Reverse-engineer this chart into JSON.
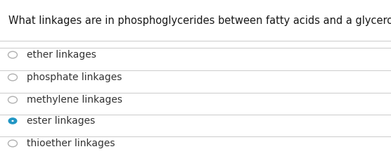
{
  "question": "What linkages are in phosphoglycerides between fatty acids and a glycerol backbone?",
  "options": [
    "ether linkages",
    "phosphate linkages",
    "methylene linkages",
    "ester linkages",
    "thioether linkages"
  ],
  "correct_index": 3,
  "background_color": "#ffffff",
  "text_color": "#1a1a1a",
  "option_text_color": "#333333",
  "question_fontsize": 10.5,
  "option_fontsize": 10.0,
  "radio_empty_edge": "#b0b0b0",
  "radio_filled_color": "#2196c4",
  "divider_color": "#d0d0d0",
  "fig_width": 5.56,
  "fig_height": 2.29,
  "dpi": 100
}
